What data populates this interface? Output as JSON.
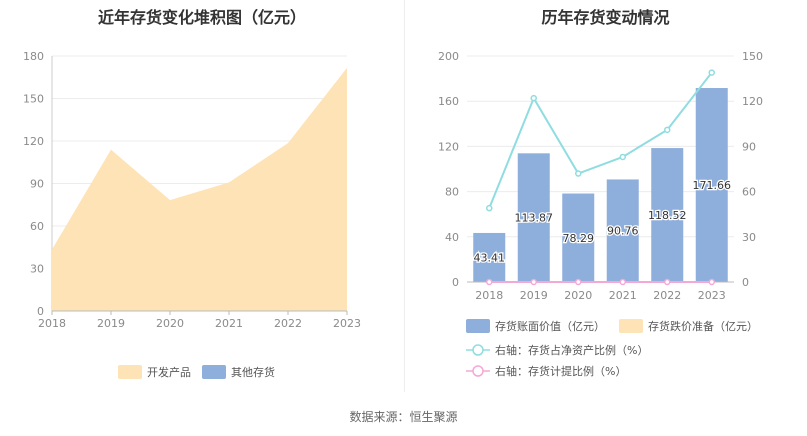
{
  "source": "数据来源：恒生聚源",
  "chart_data": [
    {
      "type": "area",
      "title": "近年存货变化堆积图（亿元）",
      "categories": [
        "2018",
        "2019",
        "2020",
        "2021",
        "2022",
        "2023"
      ],
      "ylim": [
        0,
        180
      ],
      "yticks": [
        0,
        30,
        60,
        90,
        120,
        150,
        180
      ],
      "stacked": true,
      "series": [
        {
          "name": "开发产品",
          "values": [
            43.41,
            113.87,
            78.29,
            90.76,
            118.52,
            171.66
          ],
          "color": "#fde3b6"
        },
        {
          "name": "其他存货",
          "values": [
            0,
            0,
            0,
            0,
            0,
            0
          ],
          "color": "#8eaedc"
        }
      ],
      "legend": "bottom"
    },
    {
      "type": "bar",
      "title": "历年存货变动情况",
      "categories": [
        "2018",
        "2019",
        "2020",
        "2021",
        "2022",
        "2023"
      ],
      "ylim": [
        0,
        200
      ],
      "yticks": [
        0,
        40,
        80,
        120,
        160,
        200
      ],
      "y2lim": [
        0,
        150
      ],
      "y2ticks": [
        0,
        30,
        60,
        90,
        120,
        150
      ],
      "series": [
        {
          "name": "存货账面价值（亿元）",
          "kind": "bar",
          "axis": "left",
          "color": "#8eaedc",
          "values": [
            43.41,
            113.87,
            78.29,
            90.76,
            118.52,
            171.66
          ],
          "labels": [
            "43.41",
            "113.87",
            "78.29",
            "90.76",
            "118.52",
            "171.66"
          ]
        },
        {
          "name": "存货跌价准备（亿元）",
          "kind": "bar",
          "axis": "left",
          "color": "#fde3b6",
          "values": [
            0,
            0,
            0,
            0,
            0,
            0
          ]
        },
        {
          "name": "右轴：存货占净资产比例（%）",
          "kind": "line",
          "axis": "right",
          "color": "#8fdde0",
          "values": [
            49,
            122,
            72,
            83,
            101,
            139
          ]
        },
        {
          "name": "右轴：存货计提比例（%）",
          "kind": "line",
          "axis": "right",
          "color": "#f4a8d6",
          "values": [
            0,
            0,
            0,
            0,
            0,
            0
          ]
        }
      ],
      "legend": "bottom"
    }
  ]
}
